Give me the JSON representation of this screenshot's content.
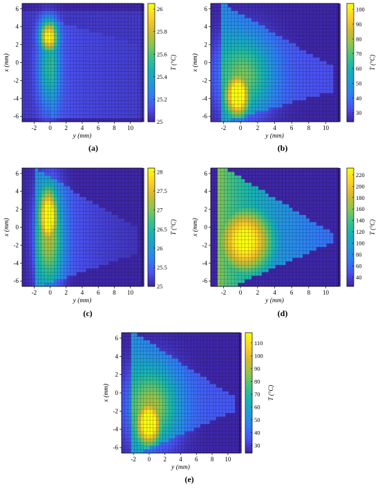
{
  "figure": {
    "panel_labels": [
      "(a)",
      "(b)",
      "(c)",
      "(d)",
      "(e)"
    ]
  },
  "chart_data": [
    {
      "type": "heatmap",
      "panel_label": "(a)",
      "xlabel": "y (mm)",
      "ylabel": "x (mm)",
      "colorbar_label": "T (°C)",
      "xlim": [
        -3.5,
        11.5
      ],
      "ylim": [
        -6.6,
        6.6
      ],
      "xticks": [
        -2,
        0,
        2,
        4,
        6,
        8,
        10
      ],
      "yticks": [
        -6,
        -4,
        -2,
        0,
        2,
        4,
        6
      ],
      "clim": [
        25,
        26.05
      ],
      "cticks": [
        25,
        25.2,
        25.4,
        25.6,
        25.8,
        26
      ],
      "colormap": [
        "#3e26a8",
        "#4a51f3",
        "#2f7df7",
        "#1f9bd8",
        "#15b4b4",
        "#3fc286",
        "#8fc64c",
        "#d5ba2e",
        "#fdd025",
        "#f9fb0e"
      ],
      "hotspot": {
        "y": -0.2,
        "x": 3.0,
        "peak": 26.05
      },
      "plume": "vertical column from x=-6 to x=5.5 with faint tail toward +y"
    },
    {
      "type": "heatmap",
      "panel_label": "(b)",
      "xlabel": "y (mm)",
      "ylabel": "x (mm)",
      "colorbar_label": "T (°C)",
      "xlim": [
        -3.5,
        11.5
      ],
      "ylim": [
        -6.6,
        6.6
      ],
      "xticks": [
        -2,
        0,
        2,
        4,
        6,
        8,
        10
      ],
      "yticks": [
        -6,
        -4,
        -2,
        0,
        2,
        4,
        6
      ],
      "clim": [
        24,
        104
      ],
      "cticks": [
        30,
        40,
        50,
        60,
        70,
        80,
        90,
        100
      ],
      "colormap": [
        "#3e26a8",
        "#4a51f3",
        "#2f7df7",
        "#1f9bd8",
        "#15b4b4",
        "#3fc286",
        "#8fc64c",
        "#d5ba2e",
        "#fdd025",
        "#f9fb0e"
      ],
      "hotspot": {
        "y": -0.3,
        "x": -3.6,
        "peak": 103
      },
      "plume": "triangular region extending toward +y up to about 10.5 mm"
    },
    {
      "type": "heatmap",
      "panel_label": "(c)",
      "xlabel": "y (mm)",
      "ylabel": "x (mm)",
      "colorbar_label": "T (°C)",
      "xlim": [
        -3.5,
        11.5
      ],
      "ylim": [
        -6.6,
        6.6
      ],
      "xticks": [
        -2,
        0,
        2,
        4,
        6,
        8,
        10
      ],
      "yticks": [
        -6,
        -4,
        -2,
        0,
        2,
        4,
        6
      ],
      "clim": [
        25,
        28.1
      ],
      "cticks": [
        25,
        25.5,
        26,
        26.5,
        27,
        27.5,
        28
      ],
      "colormap": [
        "#3e26a8",
        "#4a51f3",
        "#2f7df7",
        "#1f9bd8",
        "#15b4b4",
        "#3fc286",
        "#8fc64c",
        "#d5ba2e",
        "#fdd025",
        "#f9fb0e"
      ],
      "hotspot": {
        "y": -0.2,
        "x": 1.2,
        "peak": 28.1
      },
      "plume": "vertical column with broad tail toward +y"
    },
    {
      "type": "heatmap",
      "panel_label": "(d)",
      "xlabel": "y (mm)",
      "ylabel": "x (mm)",
      "colorbar_label": "T (°C)",
      "xlim": [
        -3.5,
        11.5
      ],
      "ylim": [
        -6.6,
        6.6
      ],
      "xticks": [
        -2,
        0,
        2,
        4,
        6,
        8,
        10
      ],
      "yticks": [
        -6,
        -4,
        -2,
        0,
        2,
        4,
        6
      ],
      "clim": [
        24,
        232
      ],
      "cticks": [
        40,
        60,
        80,
        100,
        120,
        140,
        160,
        180,
        200,
        220
      ],
      "colormap": [
        "#3e26a8",
        "#4a51f3",
        "#2f7df7",
        "#1f9bd8",
        "#15b4b4",
        "#3fc286",
        "#8fc64c",
        "#d5ba2e",
        "#fdd025",
        "#f9fb0e"
      ],
      "hotspot": {
        "y": 0.5,
        "x": -1.5,
        "peak": 230
      },
      "plume": "large triangular region filled up to y about 10.5 mm"
    },
    {
      "type": "heatmap",
      "panel_label": "(e)",
      "xlabel": "y (mm)",
      "ylabel": "x (mm)",
      "colorbar_label": "T (°C)",
      "xlim": [
        -3.5,
        11.5
      ],
      "ylim": [
        -6.6,
        6.6
      ],
      "xticks": [
        -2,
        0,
        2,
        4,
        6,
        8,
        10
      ],
      "yticks": [
        -6,
        -4,
        -2,
        0,
        2,
        4,
        6
      ],
      "clim": [
        24,
        118
      ],
      "cticks": [
        30,
        40,
        50,
        60,
        70,
        80,
        90,
        100,
        110
      ],
      "colormap": [
        "#3e26a8",
        "#4a51f3",
        "#2f7df7",
        "#1f9bd8",
        "#15b4b4",
        "#3fc286",
        "#8fc64c",
        "#d5ba2e",
        "#fdd025",
        "#f9fb0e"
      ],
      "hotspot": {
        "y": 0.0,
        "x": -3.3,
        "peak": 117
      },
      "plume": "triangular region extending toward +y up to about 10.5 mm"
    }
  ]
}
